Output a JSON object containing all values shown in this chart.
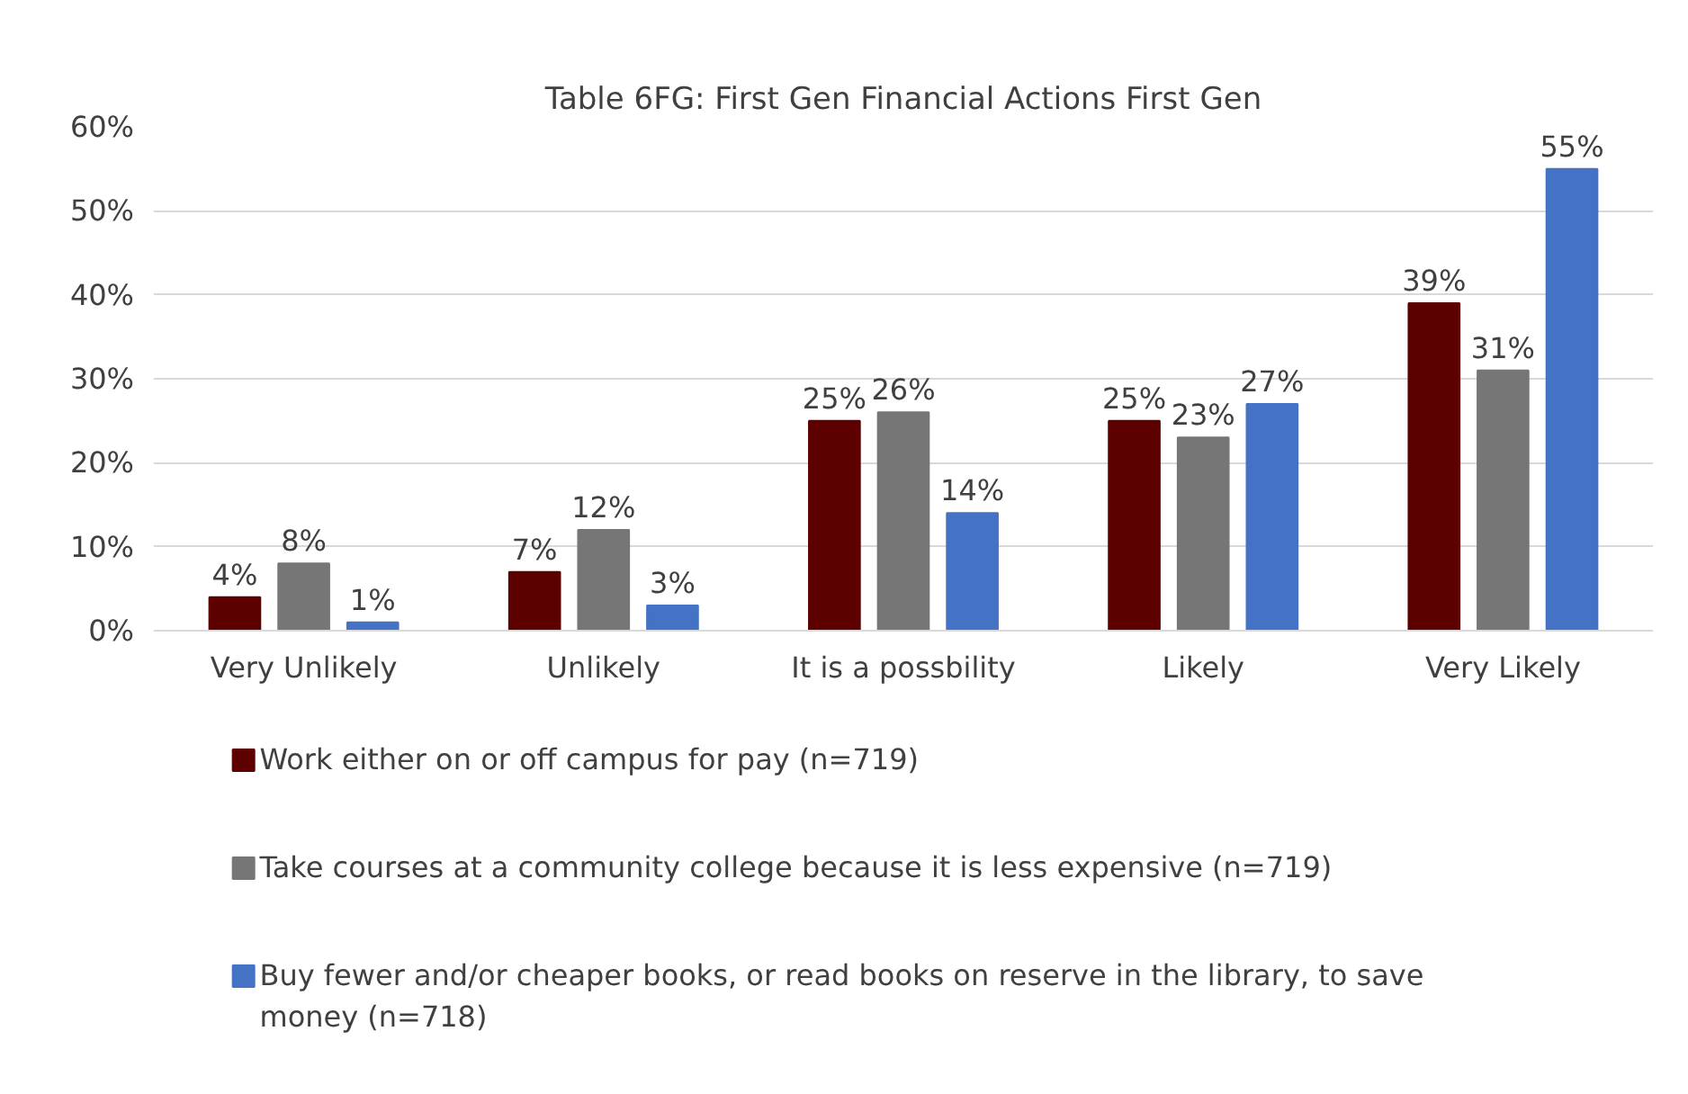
{
  "chart_data": {
    "type": "bar",
    "title": "Table 6FG: First Gen Financial Actions First Gen",
    "categories": [
      "Very Unlikely",
      "Unlikely",
      "It is a possbility",
      "Likely",
      "Very Likely"
    ],
    "series": [
      {
        "name": "Work either on or off campus for pay (n=719)",
        "color": "#5c0000",
        "values": [
          4,
          7,
          25,
          25,
          39
        ],
        "value_labels": [
          "4%",
          "7%",
          "25%",
          "25%",
          "39%"
        ]
      },
      {
        "name": "Take courses at a community college because it is less expensive (n=719)",
        "color": "#767676",
        "values": [
          8,
          12,
          26,
          23,
          31
        ],
        "value_labels": [
          "8%",
          "12%",
          "26%",
          "23%",
          "31%"
        ]
      },
      {
        "name": "Buy fewer and/or cheaper books, or read books on reserve in the library, to save money (n=718)",
        "color": "#4472c4",
        "values": [
          1,
          3,
          14,
          27,
          55
        ],
        "value_labels": [
          "1%",
          "3%",
          "14%",
          "27%",
          "55%"
        ]
      }
    ],
    "ylim": [
      0,
      60
    ],
    "yticks": [
      {
        "value": 0,
        "label": "0%"
      },
      {
        "value": 10,
        "label": "10%"
      },
      {
        "value": 20,
        "label": "20%"
      },
      {
        "value": 30,
        "label": "30%"
      },
      {
        "value": 40,
        "label": "40%"
      },
      {
        "value": 50,
        "label": "50%"
      },
      {
        "value": 60,
        "label": "60%"
      }
    ],
    "grid": "y",
    "legend": "bottom"
  }
}
